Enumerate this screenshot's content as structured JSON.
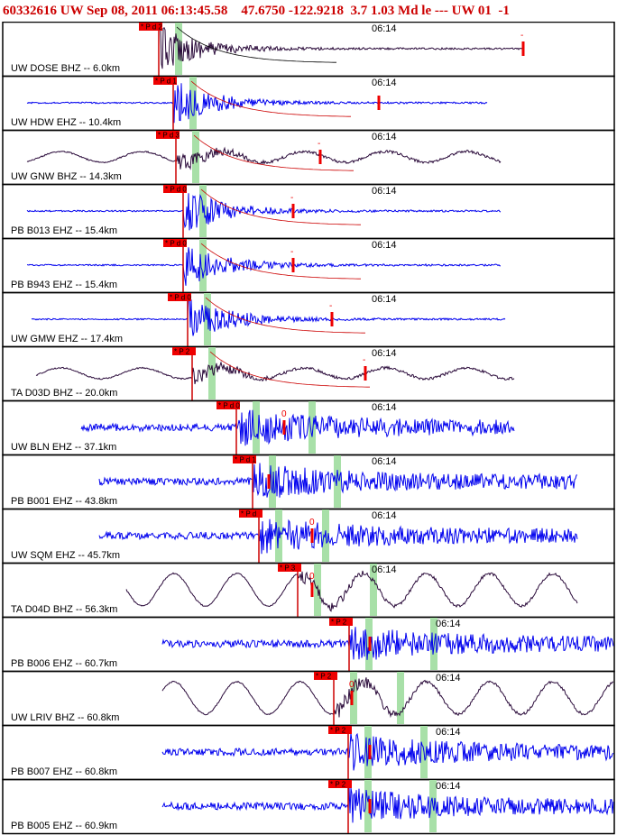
{
  "header": {
    "event_info": "60332616 UW Sep 08, 2011 06:13:45.58    47.6750 -122.9218  3.7 1.03 Md le --- UW 01  -1"
  },
  "colors": {
    "header_text": "#cc0000",
    "pick_box": "#ee0000",
    "pick_line": "#cc0000",
    "green_band": "#a8e0a8",
    "trace_dark": "#2a0a3a",
    "trace_blue": "#0000ee",
    "frame": "#000000"
  },
  "chart_data": {
    "type": "seismogram",
    "time_label": "06:14",
    "traces": [
      {
        "station": "UW DOSE BHZ -- 6.0km",
        "color": "dark",
        "pick": "P d 2",
        "coda_marker": "-",
        "greens": 1
      },
      {
        "station": "UW HDW EHZ -- 10.4km",
        "color": "blue",
        "pick": "P d 1",
        "coda_marker": "",
        "greens": 1
      },
      {
        "station": "UW GNW BHZ -- 14.3km",
        "color": "dark",
        "pick": "P d 3",
        "coda_marker": "-",
        "greens": 1
      },
      {
        "station": "PB B013 EHZ -- 15.4km",
        "color": "blue",
        "pick": "P d 0",
        "coda_marker": "-",
        "greens": 1
      },
      {
        "station": "PB B943 EHZ -- 15.4km",
        "color": "blue",
        "pick": "P d 0",
        "coda_marker": "-",
        "greens": 1
      },
      {
        "station": "UW GMW EHZ -- 17.4km",
        "color": "blue",
        "pick": "P d 0",
        "coda_marker": "-",
        "greens": 1
      },
      {
        "station": "TA D03D BHZ -- 20.0km",
        "color": "dark",
        "pick": "P 2",
        "coda_marker": "-",
        "greens": 1
      },
      {
        "station": "UW BLN EHZ -- 37.1km",
        "color": "blue",
        "pick": "P d 0",
        "coda_marker": "0",
        "greens": 2
      },
      {
        "station": "PB B001 EHZ -- 43.8km",
        "color": "blue",
        "pick": "P d 1",
        "coda_marker": "",
        "greens": 2
      },
      {
        "station": "UW SQM EHZ -- 45.7km",
        "color": "blue",
        "pick": "P d",
        "coda_marker": "0",
        "greens": 2
      },
      {
        "station": "TA D04D BHZ -- 56.3km",
        "color": "dark",
        "pick": "P 3",
        "coda_marker": "0",
        "greens": 2
      },
      {
        "station": "PB B006 EHZ -- 60.7km",
        "color": "blue",
        "pick": "P 2",
        "coda_marker": "",
        "greens": 2
      },
      {
        "station": "UW LRIV BHZ -- 60.8km",
        "color": "dark",
        "pick": "P 2",
        "coda_marker": "0",
        "greens": 2
      },
      {
        "station": "PB B007 EHZ -- 60.8km",
        "color": "blue",
        "pick": "P 2",
        "coda_marker": "",
        "greens": 2
      },
      {
        "station": "PB B005 EHZ -- 60.9km",
        "color": "blue",
        "pick": "P 2",
        "coda_marker": "",
        "greens": 2
      }
    ]
  }
}
